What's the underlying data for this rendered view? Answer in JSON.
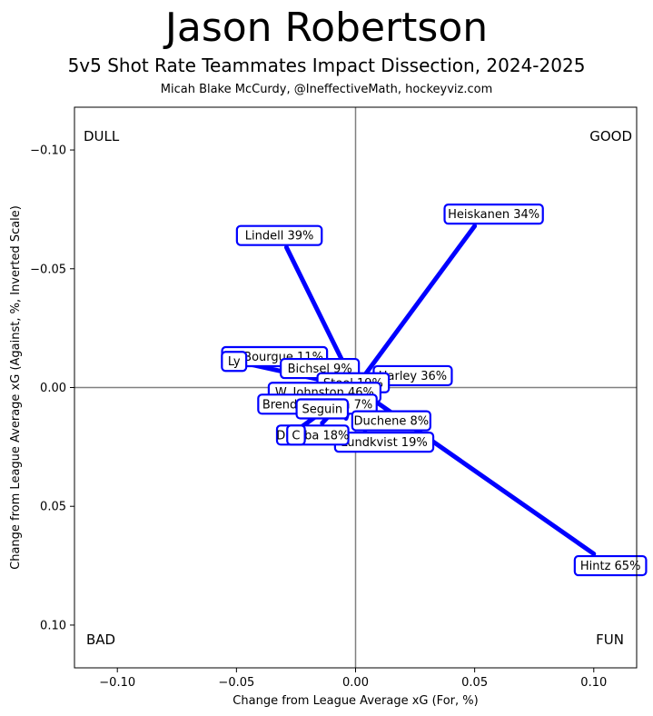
{
  "title": "Jason Robertson",
  "subtitle": "5v5 Shot Rate Teammates Impact Dissection, 2024-2025",
  "credit": "Micah Blake McCurdy, @IneffectiveMath, hockeyviz.com",
  "colors": {
    "accent": "#0000ff",
    "axis_line": "#808080",
    "frame": "#000000"
  },
  "chart_data": {
    "type": "scatter",
    "xlabel": "Change from League Average xG (For, %)",
    "ylabel": "Change from League Average xG (Against, %, Inverted Scale)",
    "xlim": [
      -0.118,
      0.118
    ],
    "ylim": [
      0.118,
      -0.118
    ],
    "y_inverted": true,
    "xticks": [
      -0.1,
      -0.05,
      0.0,
      0.05,
      0.1
    ],
    "yticks": [
      -0.1,
      -0.05,
      0.0,
      0.05,
      0.1
    ],
    "xtick_labels": [
      "−0.10",
      "−0.05",
      "0.00",
      "0.05",
      "0.10"
    ],
    "ytick_labels": [
      "−0.10",
      "−0.05",
      "0.00",
      "0.05",
      "0.10"
    ],
    "grid": false,
    "quadrant_labels": {
      "top_left": "DULL",
      "top_right": "GOOD",
      "bottom_left": "BAD",
      "bottom_right": "FUN"
    },
    "origin": [
      0.0,
      0.0
    ],
    "teammates": [
      {
        "label": "Heiskanen 34%",
        "x": 0.05,
        "y": -0.068,
        "label_x": 0.058,
        "label_y": -0.073
      },
      {
        "label": "Lindell 39%",
        "x": -0.029,
        "y": -0.059,
        "label_x": -0.032,
        "label_y": -0.064
      },
      {
        "label": "Hintz 65%",
        "x": 0.1,
        "y": 0.07,
        "label_x": 0.107,
        "label_y": 0.075
      },
      {
        "label": "Lundkvist 19%",
        "x": 0.004,
        "y": 0.018,
        "label_x": 0.012,
        "label_y": 0.023
      },
      {
        "label": "M. Bourgue 11%",
        "x": -0.016,
        "y": -0.01,
        "label_x": -0.034,
        "label_y": -0.013
      },
      {
        "label": "Ly",
        "x": -0.05,
        "y": -0.011,
        "label_x": -0.051,
        "label_y": -0.011
      },
      {
        "label": "Bichsel 9%",
        "x": -0.012,
        "y": -0.006,
        "label_x": -0.015,
        "label_y": -0.008
      },
      {
        "label": "Harley 36%",
        "x": 0.012,
        "y": -0.002,
        "label_x": 0.024,
        "label_y": -0.005
      },
      {
        "label": "Steel 19%",
        "x": -0.004,
        "y": -0.001,
        "label_x": -0.001,
        "label_y": -0.002
      },
      {
        "label": "W. Johnston 46%",
        "x": -0.01,
        "y": 0.001,
        "label_x": -0.013,
        "label_y": 0.002
      },
      {
        "label": "Brendan Smith 7%",
        "x": -0.011,
        "y": 0.006,
        "label_x": -0.016,
        "label_y": 0.007
      },
      {
        "label": "Seguin",
        "x": -0.012,
        "y": 0.01,
        "label_x": -0.014,
        "label_y": 0.009
      },
      {
        "label": "Duchene 8%",
        "x": -0.004,
        "y": 0.013,
        "label_x": 0.015,
        "label_y": 0.014
      },
      {
        "label": "Dumba 18%",
        "x": -0.014,
        "y": 0.015,
        "label_x": -0.018,
        "label_y": 0.02
      },
      {
        "label": "C",
        "x": -0.026,
        "y": 0.019,
        "label_x": -0.025,
        "label_y": 0.02
      }
    ]
  }
}
